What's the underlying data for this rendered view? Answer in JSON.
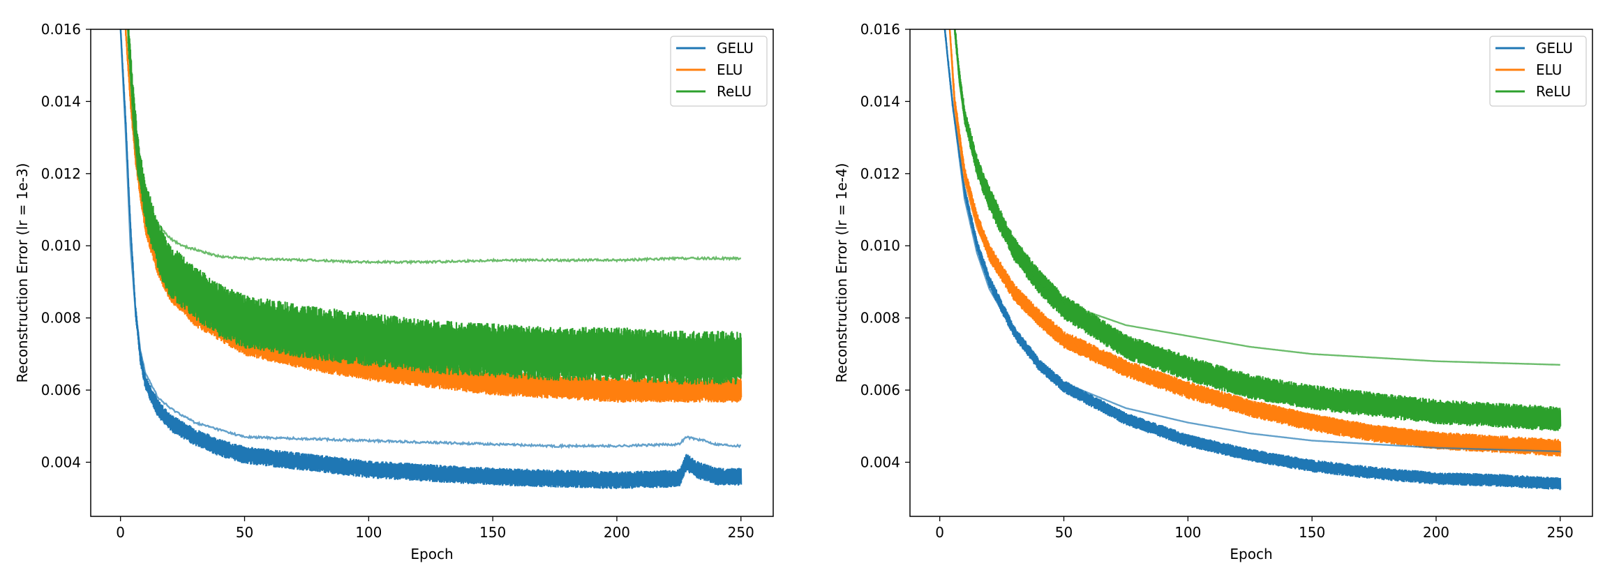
{
  "colors": {
    "gelu": "#1f77b4",
    "elu": "#ff7f0e",
    "relu": "#2ca02c"
  },
  "chart_data": [
    {
      "type": "line",
      "xlabel": "Epoch",
      "ylabel": "Reconstruction Error (lr = 1e-3)",
      "xlim": [
        -12,
        263
      ],
      "ylim": [
        0.0025,
        0.016
      ],
      "xticks": [
        0,
        50,
        100,
        150,
        200,
        250
      ],
      "xtick_labels": [
        "0",
        "50",
        "100",
        "150",
        "200",
        "250"
      ],
      "yticks": [
        0.004,
        0.006,
        0.008,
        0.01,
        0.012,
        0.014,
        0.016
      ],
      "ytick_labels": [
        "0.004",
        "0.006",
        "0.008",
        "0.010",
        "0.012",
        "0.014",
        "0.016"
      ],
      "legend": {
        "position": "top-right",
        "entries": [
          "GELU",
          "ELU",
          "ReLU"
        ]
      },
      "grid": false,
      "series": [
        {
          "name": "GELU",
          "color": "#1f77b4",
          "style": "band",
          "x": [
            0,
            2,
            4,
            6,
            8,
            10,
            15,
            20,
            30,
            40,
            50,
            75,
            100,
            125,
            150,
            175,
            200,
            225,
            228,
            232,
            240,
            250
          ],
          "y": [
            0.016,
            0.0135,
            0.0105,
            0.0082,
            0.0069,
            0.0062,
            0.0055,
            0.0051,
            0.0047,
            0.0044,
            0.0042,
            0.004,
            0.0038,
            0.0037,
            0.0036,
            0.00355,
            0.0035,
            0.00355,
            0.004,
            0.0038,
            0.0036,
            0.0036
          ],
          "band": 0.00025
        },
        {
          "name": "GELU",
          "color": "#1f77b4",
          "style": "line",
          "x": [
            0,
            2,
            4,
            6,
            8,
            10,
            15,
            20,
            30,
            40,
            50,
            75,
            100,
            125,
            150,
            175,
            200,
            225,
            228,
            235,
            240,
            250
          ],
          "y": [
            0.016,
            0.0132,
            0.01,
            0.0082,
            0.0071,
            0.0065,
            0.0058,
            0.0055,
            0.0051,
            0.0049,
            0.0047,
            0.00465,
            0.0046,
            0.00455,
            0.0045,
            0.00445,
            0.00445,
            0.0045,
            0.0047,
            0.0046,
            0.0045,
            0.00445
          ]
        },
        {
          "name": "ELU",
          "color": "#ff7f0e",
          "style": "band",
          "x": [
            2,
            4,
            6,
            8,
            10,
            15,
            20,
            30,
            40,
            50,
            75,
            100,
            125,
            150,
            175,
            200,
            225,
            250
          ],
          "y": [
            0.016,
            0.014,
            0.0125,
            0.0115,
            0.0106,
            0.0095,
            0.0088,
            0.0081,
            0.0077,
            0.0073,
            0.0069,
            0.0066,
            0.0064,
            0.0062,
            0.0061,
            0.006,
            0.006,
            0.006
          ],
          "band": 0.00035
        },
        {
          "name": "ReLU",
          "color": "#2ca02c",
          "style": "band",
          "x": [
            3,
            5,
            7,
            10,
            15,
            20,
            30,
            40,
            50,
            75,
            100,
            125,
            150,
            175,
            200,
            225,
            250
          ],
          "y": [
            0.016,
            0.014,
            0.0125,
            0.0112,
            0.01,
            0.0093,
            0.0087,
            0.0082,
            0.0079,
            0.0076,
            0.0074,
            0.0072,
            0.0071,
            0.007,
            0.007,
            0.0069,
            0.0069
          ],
          "band": 0.00075
        },
        {
          "name": "ReLU",
          "color": "#2ca02c",
          "style": "line",
          "x": [
            3,
            5,
            7,
            10,
            15,
            20,
            25,
            30,
            40,
            50,
            75,
            100,
            125,
            150,
            175,
            200,
            225,
            250
          ],
          "y": [
            0.016,
            0.0135,
            0.012,
            0.0112,
            0.0106,
            0.0102,
            0.01,
            0.0099,
            0.0097,
            0.00965,
            0.0096,
            0.00955,
            0.00955,
            0.0096,
            0.0096,
            0.0096,
            0.00965,
            0.00965
          ]
        }
      ]
    },
    {
      "type": "line",
      "xlabel": "Epoch",
      "ylabel": "Reconstruction Error (lr = 1e-4)",
      "xlim": [
        -12,
        263
      ],
      "ylim": [
        0.0025,
        0.016
      ],
      "xticks": [
        0,
        50,
        100,
        150,
        200,
        250
      ],
      "xtick_labels": [
        "0",
        "50",
        "100",
        "150",
        "200",
        "250"
      ],
      "yticks": [
        0.004,
        0.006,
        0.008,
        0.01,
        0.012,
        0.014,
        0.016
      ],
      "ytick_labels": [
        "0.004",
        "0.006",
        "0.008",
        "0.010",
        "0.012",
        "0.014",
        "0.016"
      ],
      "legend": {
        "position": "top-right",
        "entries": [
          "GELU",
          "ELU",
          "ReLU"
        ]
      },
      "grid": false,
      "series": [
        {
          "name": "GELU",
          "color": "#1f77b4",
          "style": "band",
          "x": [
            2,
            5,
            10,
            15,
            20,
            30,
            40,
            50,
            75,
            100,
            125,
            150,
            175,
            200,
            225,
            250
          ],
          "y": [
            0.016,
            0.014,
            0.0115,
            0.01,
            0.009,
            0.0076,
            0.0067,
            0.0061,
            0.0052,
            0.0046,
            0.0042,
            0.0039,
            0.0037,
            0.00355,
            0.0035,
            0.0034
          ],
          "band": 0.00018
        },
        {
          "name": "GELU",
          "color": "#1f77b4",
          "style": "line",
          "x": [
            2,
            5,
            10,
            15,
            20,
            30,
            40,
            50,
            75,
            100,
            125,
            150,
            175,
            200,
            225,
            250
          ],
          "y": [
            0.016,
            0.014,
            0.0113,
            0.0098,
            0.0088,
            0.0076,
            0.0068,
            0.0062,
            0.0055,
            0.0051,
            0.0048,
            0.0046,
            0.0045,
            0.0044,
            0.00435,
            0.0043
          ]
        },
        {
          "name": "ELU",
          "color": "#ff7f0e",
          "style": "band",
          "x": [
            4,
            6,
            10,
            15,
            20,
            30,
            40,
            50,
            75,
            100,
            125,
            150,
            175,
            200,
            225,
            250
          ],
          "y": [
            0.016,
            0.014,
            0.012,
            0.0107,
            0.0098,
            0.0087,
            0.008,
            0.0074,
            0.0066,
            0.006,
            0.0055,
            0.0051,
            0.0048,
            0.0046,
            0.0045,
            0.0044
          ],
          "band": 0.00025
        },
        {
          "name": "ELU",
          "color": "#ff7f0e",
          "style": "line",
          "x": [
            4,
            6,
            10,
            15,
            20,
            30,
            40,
            50,
            75,
            100,
            125,
            150,
            175,
            200,
            225,
            250
          ],
          "y": [
            0.016,
            0.0138,
            0.0118,
            0.0105,
            0.0097,
            0.0086,
            0.0079,
            0.0074,
            0.0066,
            0.0061,
            0.0057,
            0.0053,
            0.005,
            0.0048,
            0.0046,
            0.0045
          ]
        },
        {
          "name": "ReLU",
          "color": "#2ca02c",
          "style": "band",
          "x": [
            6,
            8,
            10,
            15,
            20,
            30,
            40,
            50,
            75,
            100,
            125,
            150,
            175,
            200,
            225,
            250
          ],
          "y": [
            0.016,
            0.0146,
            0.0136,
            0.0122,
            0.0113,
            0.0099,
            0.009,
            0.0083,
            0.0072,
            0.0066,
            0.0061,
            0.0058,
            0.0056,
            0.0054,
            0.0053,
            0.0052
          ],
          "band": 0.00035
        },
        {
          "name": "ReLU",
          "color": "#2ca02c",
          "style": "line",
          "x": [
            6,
            8,
            10,
            15,
            20,
            30,
            40,
            50,
            75,
            100,
            125,
            150,
            175,
            200,
            225,
            250
          ],
          "y": [
            0.016,
            0.0145,
            0.0135,
            0.0121,
            0.0112,
            0.0099,
            0.009,
            0.0084,
            0.0078,
            0.0075,
            0.0072,
            0.007,
            0.0069,
            0.0068,
            0.00675,
            0.0067
          ]
        }
      ]
    }
  ]
}
